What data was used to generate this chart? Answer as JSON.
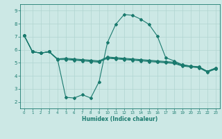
{
  "xlabel": "Humidex (Indice chaleur)",
  "bg_color": "#cce8e5",
  "line_color": "#1a7a6e",
  "grid_color": "#b0d4d0",
  "xlim": [
    -0.5,
    23.5
  ],
  "ylim": [
    1.5,
    9.5
  ],
  "xticks": [
    0,
    1,
    2,
    3,
    4,
    5,
    6,
    7,
    8,
    9,
    10,
    11,
    12,
    13,
    14,
    15,
    16,
    17,
    18,
    19,
    20,
    21,
    22,
    23
  ],
  "yticks": [
    2,
    3,
    4,
    5,
    6,
    7,
    8,
    9
  ],
  "curve_big_x": [
    0,
    1,
    2,
    3,
    4,
    5,
    6,
    7,
    8,
    9,
    10,
    11,
    12,
    13,
    14,
    15,
    16,
    17,
    18,
    19,
    20,
    21,
    22,
    23
  ],
  "curve_big_y": [
    7.1,
    5.85,
    5.75,
    5.85,
    5.3,
    2.35,
    2.3,
    2.55,
    2.3,
    3.55,
    6.55,
    7.95,
    8.7,
    8.65,
    8.35,
    7.95,
    7.05,
    5.4,
    5.15,
    4.85,
    4.75,
    4.65,
    4.35,
    4.6
  ],
  "curve_flat1_x": [
    0,
    1,
    2,
    3,
    4,
    5,
    6,
    7,
    8,
    9,
    10,
    11,
    12,
    13,
    14,
    15,
    16,
    17,
    18,
    19,
    20,
    21,
    22,
    23
  ],
  "curve_flat1_y": [
    7.1,
    5.85,
    5.75,
    5.85,
    5.3,
    5.35,
    5.3,
    5.25,
    5.2,
    5.15,
    5.45,
    5.4,
    5.35,
    5.3,
    5.25,
    5.2,
    5.15,
    5.1,
    5.05,
    4.85,
    4.75,
    4.7,
    4.35,
    4.6
  ],
  "curve_flat2_x": [
    0,
    1,
    2,
    3,
    4,
    5,
    6,
    7,
    8,
    9,
    10,
    11,
    12,
    13,
    14,
    15,
    16,
    17,
    18,
    19,
    20,
    21,
    22,
    23
  ],
  "curve_flat2_y": [
    7.1,
    5.85,
    5.75,
    5.85,
    5.3,
    5.3,
    5.25,
    5.2,
    5.15,
    5.1,
    5.4,
    5.35,
    5.3,
    5.25,
    5.2,
    5.15,
    5.1,
    5.05,
    5.0,
    4.8,
    4.72,
    4.68,
    4.32,
    4.56
  ],
  "curve_flat3_x": [
    0,
    1,
    2,
    3,
    4,
    5,
    6,
    7,
    8,
    9,
    10,
    11,
    12,
    13,
    14,
    15,
    16,
    17,
    18,
    19,
    20,
    21,
    22,
    23
  ],
  "curve_flat3_y": [
    7.1,
    5.85,
    5.75,
    5.85,
    5.25,
    5.25,
    5.2,
    5.15,
    5.1,
    5.05,
    5.35,
    5.3,
    5.25,
    5.2,
    5.15,
    5.1,
    5.05,
    5.0,
    4.95,
    4.75,
    4.68,
    4.62,
    4.28,
    4.52
  ]
}
